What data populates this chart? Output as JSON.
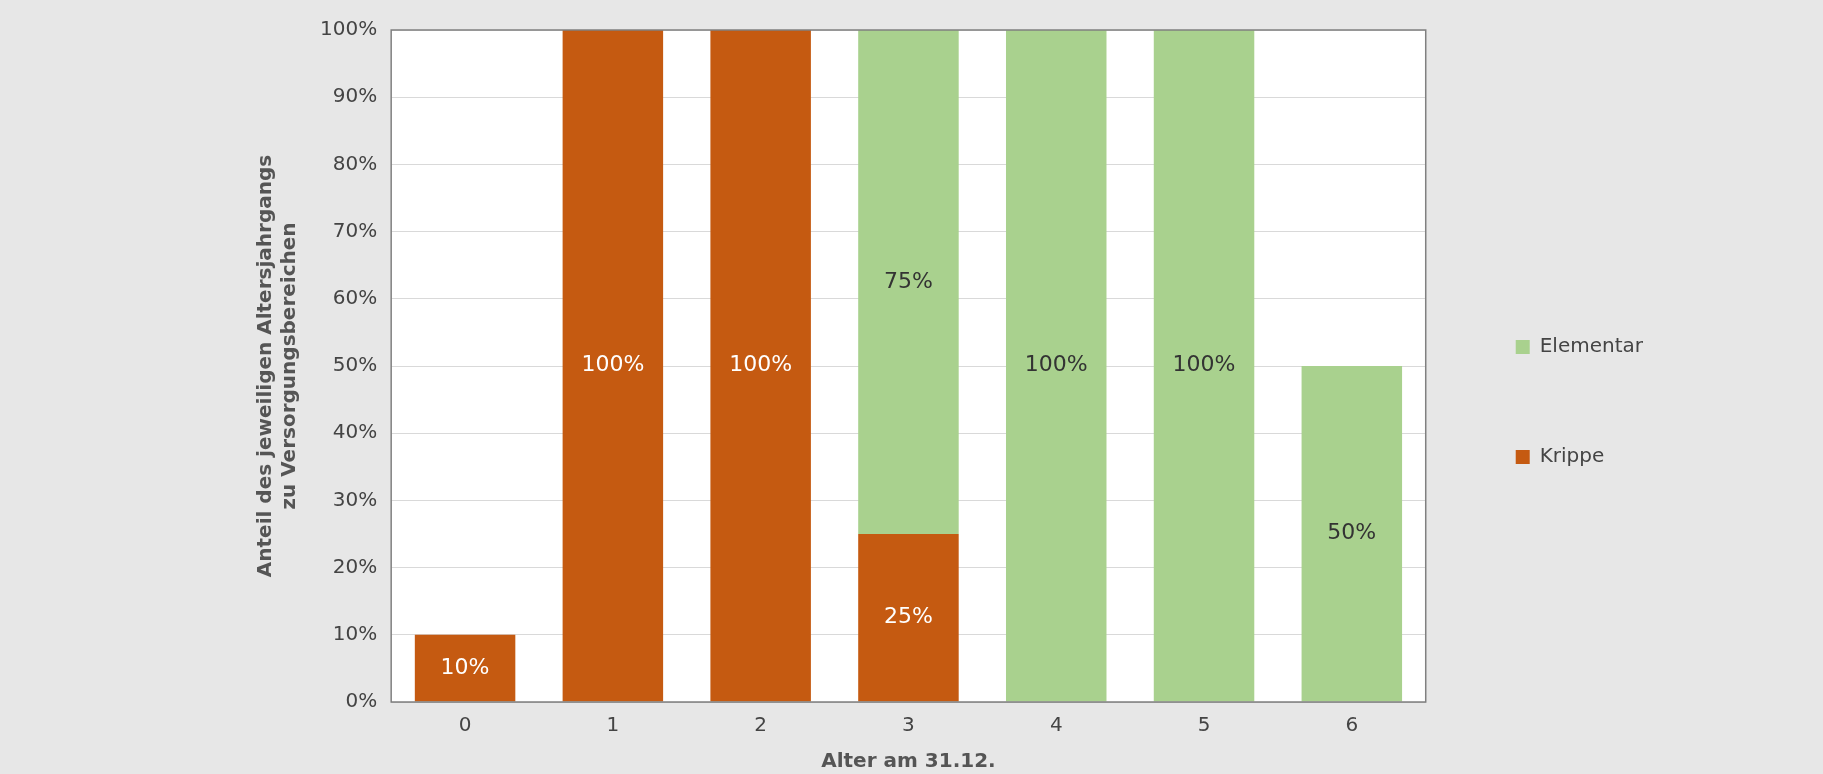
{
  "chart_data": {
    "type": "bar",
    "stacked": true,
    "xlabel": "Alter am 31.12.",
    "ylabel": "Anteil des jeweiligen Altersjahrgangs zu Versorgungsbereichen",
    "categories": [
      "0",
      "1",
      "2",
      "3",
      "4",
      "5",
      "6"
    ],
    "series": [
      {
        "name": "Krippe",
        "color": "#c55a11",
        "values": [
          10,
          100,
          100,
          25,
          null,
          null,
          null
        ],
        "value_labels": [
          "10%",
          "100%",
          "100%",
          "25%",
          null,
          null,
          null
        ]
      },
      {
        "name": "Elementar",
        "color": "#a9d18e",
        "values": [
          null,
          null,
          null,
          75,
          100,
          100,
          50
        ],
        "value_labels": [
          null,
          null,
          null,
          "75%",
          "100%",
          "100%",
          "50%"
        ]
      }
    ],
    "ylim": [
      0,
      100
    ],
    "yticks": [
      {
        "value": 0,
        "label": "0%"
      },
      {
        "value": 10,
        "label": "10%"
      },
      {
        "value": 20,
        "label": "20%"
      },
      {
        "value": 30,
        "label": "30%"
      },
      {
        "value": 40,
        "label": "40%"
      },
      {
        "value": 50,
        "label": "50%"
      },
      {
        "value": 60,
        "label": "60%"
      },
      {
        "value": 70,
        "label": "70%"
      },
      {
        "value": 80,
        "label": "80%"
      },
      {
        "value": 90,
        "label": "90%"
      },
      {
        "value": 100,
        "label": "100%"
      }
    ],
    "grid": "y",
    "legend": "right"
  }
}
